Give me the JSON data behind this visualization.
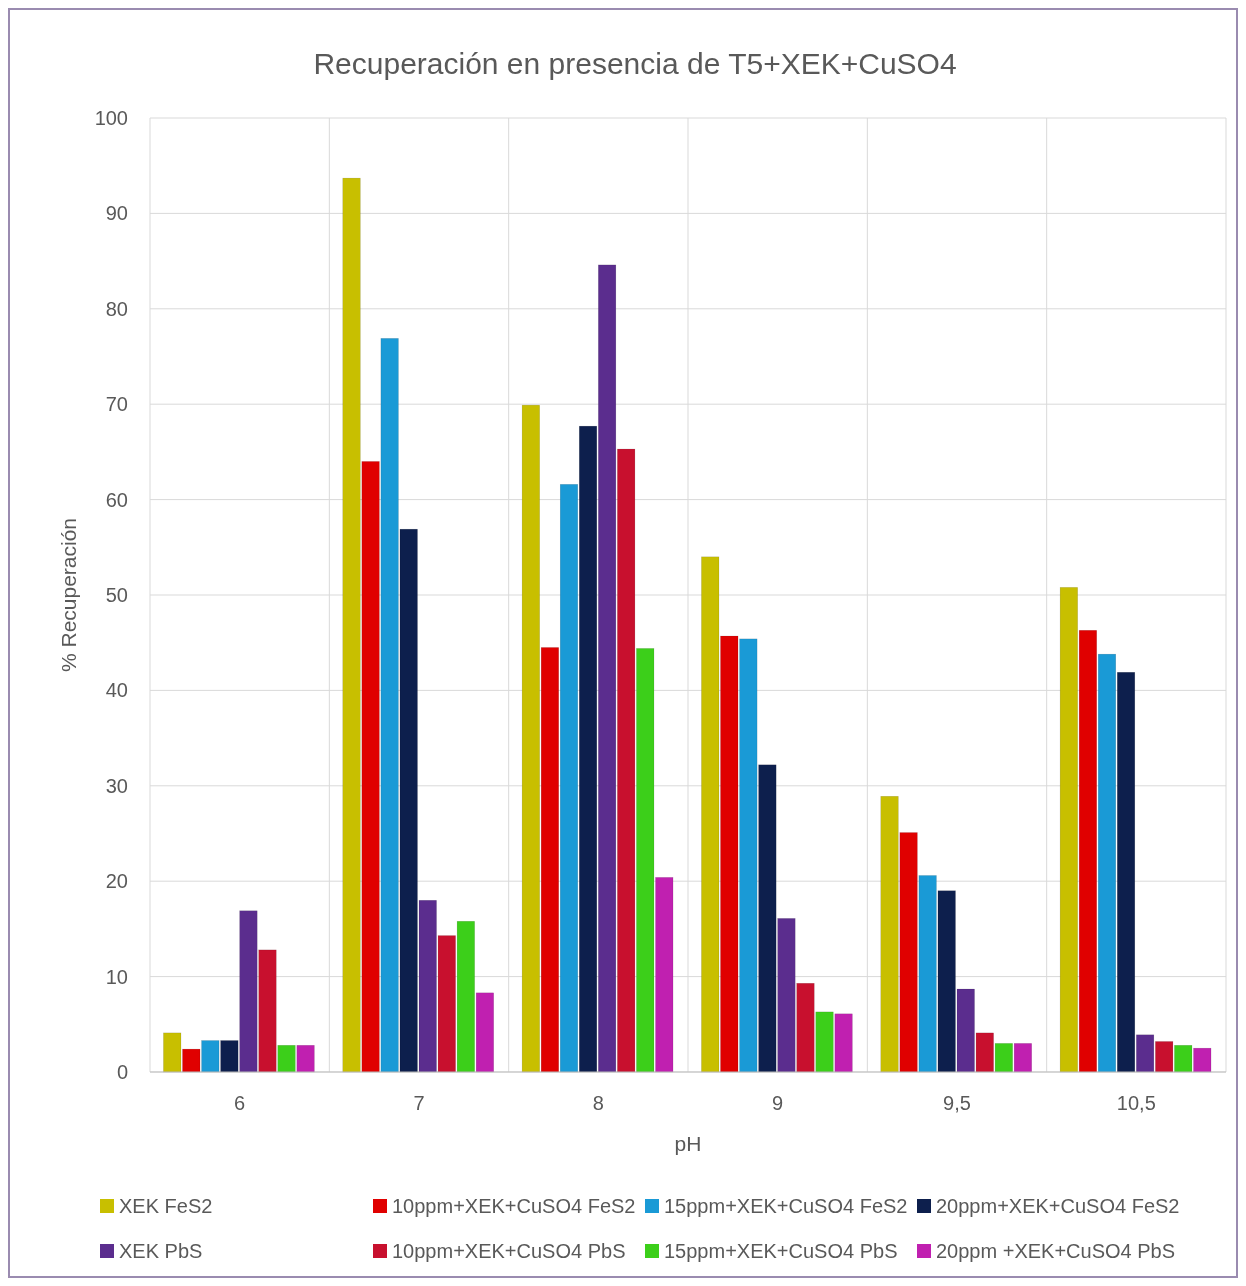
{
  "chart_data": {
    "type": "bar",
    "title": "Recuperación en presencia de T5+XEK+CuSO4",
    "xlabel": "pH",
    "ylabel": "% Recuperación",
    "categories": [
      "6",
      "7",
      "8",
      "9",
      "9,5",
      "10,5"
    ],
    "series": [
      {
        "name": "XEK FeS2",
        "color": "#c8bf00",
        "values": [
          4.1,
          93.7,
          69.9,
          54.0,
          28.9,
          50.8
        ]
      },
      {
        "name": "10ppm+XEK+CuSO4 FeS2",
        "color": "#e00000",
        "values": [
          2.4,
          64.0,
          44.5,
          45.7,
          25.1,
          46.3
        ]
      },
      {
        "name": "15ppm+XEK+CuSO4 FeS2",
        "color": "#1a9ad6",
        "values": [
          3.3,
          76.9,
          61.6,
          45.4,
          20.6,
          43.8
        ]
      },
      {
        "name": "20ppm+XEK+CuSO4 FeS2",
        "color": "#0d1f4d",
        "values": [
          3.3,
          56.9,
          67.7,
          32.2,
          19.0,
          41.9
        ]
      },
      {
        "name": "XEK PbS",
        "color": "#5b2d8e",
        "values": [
          16.9,
          18.0,
          84.6,
          16.1,
          8.7,
          3.9
        ]
      },
      {
        "name": "10ppm+XEK+CuSO4 PbS",
        "color": "#c8102e",
        "values": [
          12.8,
          14.3,
          65.3,
          9.3,
          4.1,
          3.2
        ]
      },
      {
        "name": "15ppm+XEK+CuSO4 PbS",
        "color": "#3ccf1a",
        "values": [
          2.8,
          15.8,
          44.4,
          6.3,
          3.0,
          2.8
        ]
      },
      {
        "name": "20ppm +XEK+CuSO4 PbS",
        "color": "#c020b0",
        "values": [
          2.8,
          8.3,
          20.4,
          6.1,
          3.0,
          2.5
        ]
      }
    ],
    "ylim": [
      0,
      100
    ],
    "yticks": [
      0,
      10,
      20,
      30,
      40,
      50,
      60,
      70,
      80,
      90,
      100
    ],
    "grid": true,
    "legend": "bottom"
  }
}
